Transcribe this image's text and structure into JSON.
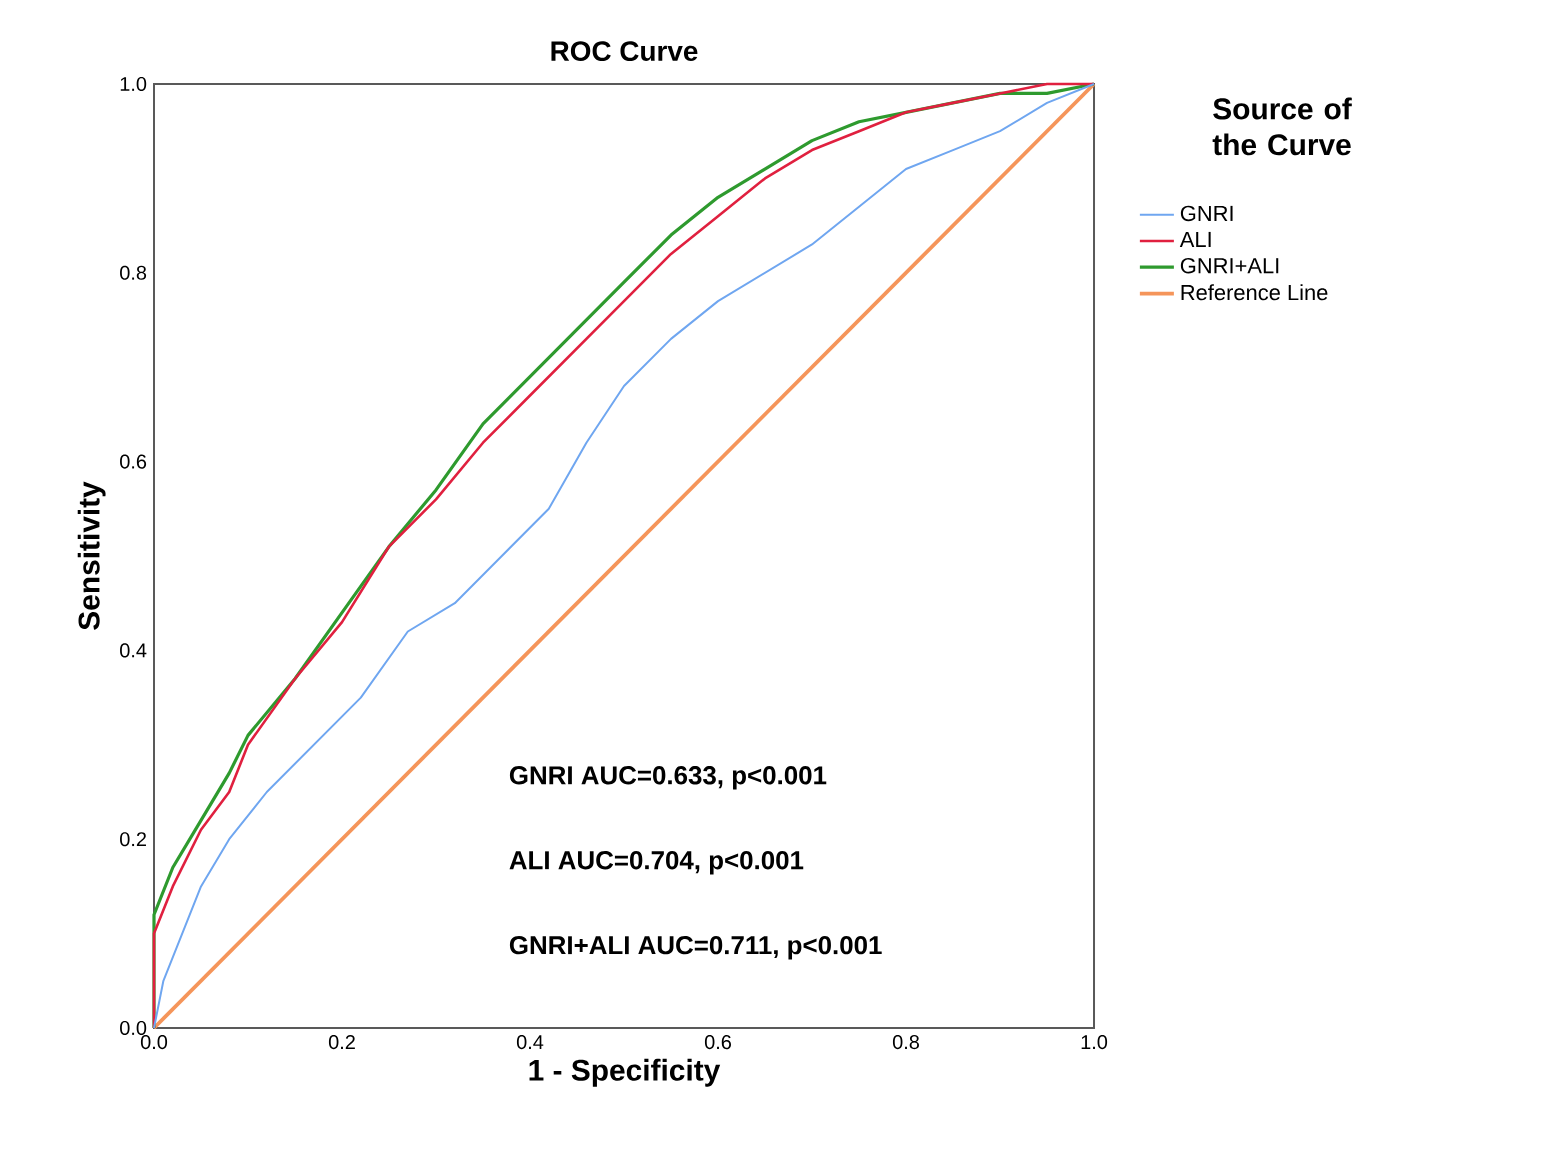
{
  "chart_data": {
    "type": "line",
    "title": "ROC Curve",
    "xlabel": "1 - Specificity",
    "ylabel": "Sensitivity",
    "legend_title": "Source of the Curve",
    "legend": "right",
    "grid": false,
    "line_style": "solid",
    "xlim": [
      0,
      1
    ],
    "ylim": [
      0,
      1
    ],
    "xticks": [
      {
        "value": 0,
        "label": "0.0"
      },
      {
        "value": 0.2,
        "label": "0.2"
      },
      {
        "value": 0.4,
        "label": "0.4"
      },
      {
        "value": 0.6,
        "label": "0.6"
      },
      {
        "value": 0.8,
        "label": "0.8"
      },
      {
        "value": 1,
        "label": "1.0"
      }
    ],
    "yticks": [
      {
        "value": 0,
        "label": "0.0"
      },
      {
        "value": 0.2,
        "label": "0.2"
      },
      {
        "value": 0.4,
        "label": "0.4"
      },
      {
        "value": 0.6,
        "label": "0.6"
      },
      {
        "value": 0.8,
        "label": "0.8"
      },
      {
        "value": 1,
        "label": "1.0"
      }
    ],
    "series": [
      {
        "name": "GNRI",
        "color": "#6fa6f0",
        "x": [
          0,
          0.01,
          0.03,
          0.05,
          0.08,
          0.12,
          0.17,
          0.22,
          0.27,
          0.32,
          0.37,
          0.42,
          0.46,
          0.5,
          0.55,
          0.6,
          0.65,
          0.7,
          0.75,
          0.8,
          0.85,
          0.9,
          0.95,
          1
        ],
        "values": [
          0,
          0.05,
          0.1,
          0.15,
          0.2,
          0.25,
          0.3,
          0.35,
          0.42,
          0.45,
          0.5,
          0.55,
          0.62,
          0.68,
          0.73,
          0.77,
          0.8,
          0.83,
          0.87,
          0.91,
          0.93,
          0.95,
          0.98,
          1
        ]
      },
      {
        "name": "ALI",
        "color": "#e0203f",
        "x": [
          0,
          0,
          0.02,
          0.05,
          0.08,
          0.1,
          0.15,
          0.2,
          0.25,
          0.3,
          0.35,
          0.4,
          0.45,
          0.5,
          0.55,
          0.6,
          0.65,
          0.7,
          0.75,
          0.8,
          0.85,
          0.9,
          0.95,
          1
        ],
        "values": [
          0,
          0.1,
          0.15,
          0.21,
          0.25,
          0.3,
          0.37,
          0.43,
          0.51,
          0.56,
          0.62,
          0.67,
          0.72,
          0.77,
          0.82,
          0.86,
          0.9,
          0.93,
          0.95,
          0.97,
          0.98,
          0.99,
          1,
          1
        ]
      },
      {
        "name": "GNRI+ALI",
        "color": "#2e9a2e",
        "x": [
          0,
          0,
          0.02,
          0.05,
          0.08,
          0.1,
          0.15,
          0.2,
          0.25,
          0.3,
          0.35,
          0.4,
          0.45,
          0.5,
          0.55,
          0.6,
          0.65,
          0.7,
          0.75,
          0.8,
          0.85,
          0.9,
          0.95,
          1
        ],
        "values": [
          0,
          0.12,
          0.17,
          0.22,
          0.27,
          0.31,
          0.37,
          0.44,
          0.51,
          0.57,
          0.64,
          0.69,
          0.74,
          0.79,
          0.84,
          0.88,
          0.91,
          0.94,
          0.96,
          0.97,
          0.98,
          0.99,
          0.99,
          1
        ]
      },
      {
        "name": "Reference Line",
        "color": "#f5955a",
        "x": [
          0,
          1
        ],
        "values": [
          0,
          1
        ]
      }
    ],
    "annotations": [
      "GNRI AUC=0.633, p<0.001",
      "ALI  AUC=0.704, p<0.001",
      "GNRI+ALI  AUC=0.711, p<0.001"
    ]
  }
}
